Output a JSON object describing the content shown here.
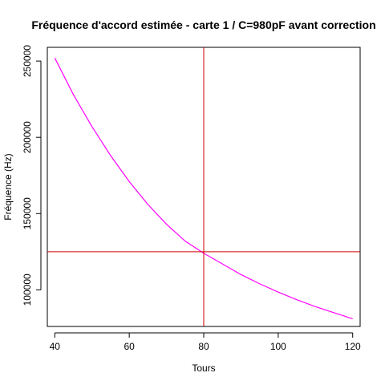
{
  "chart_data": {
    "type": "line",
    "title": "Fréquence d'accord estimée - carte 1 / C=980pF avant correction",
    "xlabel": "Tours",
    "ylabel": "Fréquence (Hz)",
    "xlim": [
      38,
      122
    ],
    "ylim": [
      76000,
      259000
    ],
    "x_ticks": [
      40,
      60,
      80,
      100,
      120
    ],
    "x_tick_labels": [
      "40",
      "60",
      "80",
      "100",
      "120"
    ],
    "y_ticks": [
      100000,
      150000,
      200000,
      250000
    ],
    "y_tick_labels": [
      "100000",
      "150000",
      "200000",
      "250000"
    ],
    "grid": false,
    "series": [
      {
        "color": "#ff00ff",
        "x": [
          40,
          45,
          50,
          55,
          60,
          65,
          70,
          75,
          80,
          85,
          90,
          95,
          100,
          105,
          110,
          115,
          120
        ],
        "y": [
          252000,
          228000,
          207000,
          188000,
          171000,
          156000,
          143000,
          132000,
          124000,
          117000,
          110000,
          104000,
          98500,
          93500,
          89000,
          85000,
          81000
        ]
      }
    ],
    "reference_lines": [
      {
        "orientation": "vertical",
        "value": 80,
        "color": "#cc0000"
      },
      {
        "orientation": "horizontal",
        "value": 125000,
        "color": "#cc0000"
      }
    ]
  }
}
